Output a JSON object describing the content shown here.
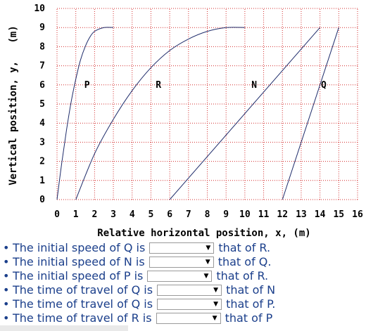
{
  "chart_data": {
    "type": "line",
    "xlabel": "Relative horizontal position, x, (m)",
    "ylabel": "Vertical position, y, (m)",
    "xlim": [
      0,
      16
    ],
    "ylim": [
      0,
      10
    ],
    "x_ticks": [
      0,
      1,
      2,
      3,
      4,
      5,
      6,
      7,
      8,
      9,
      10,
      11,
      12,
      13,
      14,
      15,
      16
    ],
    "y_ticks": [
      0,
      1,
      2,
      3,
      4,
      5,
      6,
      7,
      8,
      9,
      10
    ],
    "grid": true,
    "grid_color": "#d32f2f",
    "line_color": "#1f2c6b",
    "series": [
      {
        "name": "P",
        "label_at": [
          1.6,
          6
        ],
        "points": [
          [
            0,
            0
          ],
          [
            0.25,
            1.9
          ],
          [
            0.5,
            3.6
          ],
          [
            0.75,
            5.1
          ],
          [
            1,
            6.3
          ],
          [
            1.25,
            7.3
          ],
          [
            1.5,
            8.0
          ],
          [
            1.75,
            8.5
          ],
          [
            2,
            8.8
          ],
          [
            2.5,
            9.0
          ],
          [
            3,
            9.0
          ]
        ]
      },
      {
        "name": "R",
        "label_at": [
          5.4,
          6
        ],
        "points": [
          [
            1,
            0
          ],
          [
            2,
            2.4
          ],
          [
            3,
            4.2
          ],
          [
            4,
            5.7
          ],
          [
            5,
            6.9
          ],
          [
            6,
            7.8
          ],
          [
            7,
            8.4
          ],
          [
            8,
            8.8
          ],
          [
            9,
            9.0
          ],
          [
            10,
            9.0
          ]
        ]
      },
      {
        "name": "N",
        "label_at": [
          10.5,
          6
        ],
        "points": [
          [
            6,
            0
          ],
          [
            14,
            9
          ]
        ]
      },
      {
        "name": "Q",
        "label_at": [
          14.2,
          6
        ],
        "points": [
          [
            12,
            0
          ],
          [
            15,
            9
          ]
        ]
      }
    ]
  },
  "questions": [
    {
      "prefix": "The initial speed of Q is",
      "selected": "",
      "suffix": "that of R."
    },
    {
      "prefix": "The initial speed of N is",
      "selected": "",
      "suffix": "that of Q."
    },
    {
      "prefix": "The initial speed of P is",
      "selected": "",
      "suffix": "that of R."
    },
    {
      "prefix": "The time of travel of Q is",
      "selected": "",
      "suffix": "that of N"
    },
    {
      "prefix": "The time of travel of Q is",
      "selected": "",
      "suffix": "that of P."
    },
    {
      "prefix": "The time of travel of R is",
      "selected": "",
      "suffix": "that of P"
    }
  ],
  "icons": {
    "dropdown": "chevron-down-icon",
    "bullet": "bullet-icon"
  },
  "bullet_char": "•",
  "caret_char": "▼"
}
